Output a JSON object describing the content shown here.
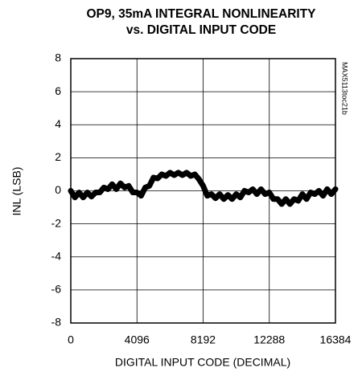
{
  "chart_data": {
    "type": "line",
    "title": "OP9, 35mA INTEGRAL NONLINEARITY",
    "subtitle": "vs. DIGITAL INPUT CODE",
    "xlabel": "DIGITAL INPUT CODE (DECIMAL)",
    "ylabel": "INL (LSB)",
    "annotation": "MAX5113toc21b",
    "x": [
      0,
      256,
      512,
      768,
      1024,
      1280,
      1536,
      1792,
      2048,
      2304,
      2560,
      2816,
      3072,
      3328,
      3584,
      3840,
      4096,
      4352,
      4608,
      4864,
      5120,
      5376,
      5632,
      5888,
      6144,
      6400,
      6656,
      6912,
      7168,
      7424,
      7680,
      7936,
      8192,
      8448,
      8704,
      8960,
      9216,
      9472,
      9728,
      9984,
      10240,
      10496,
      10752,
      11008,
      11264,
      11520,
      11776,
      12032,
      12288,
      12544,
      12800,
      13056,
      13312,
      13568,
      13824,
      14080,
      14336,
      14592,
      14848,
      15104,
      15360,
      15616,
      15872,
      16128,
      16384
    ],
    "series": [
      {
        "name": "INL",
        "color": "#000000",
        "values": [
          0,
          -0.4,
          -0.1,
          -0.4,
          -0.1,
          -0.35,
          -0.1,
          -0.1,
          0.2,
          0.1,
          0.4,
          0.1,
          0.45,
          0.2,
          0.3,
          -0.1,
          -0.1,
          -0.3,
          0.2,
          0.3,
          0.8,
          0.75,
          1.0,
          0.9,
          1.1,
          0.95,
          1.1,
          0.95,
          1.1,
          0.9,
          1.0,
          0.7,
          0.3,
          -0.3,
          -0.2,
          -0.45,
          -0.2,
          -0.5,
          -0.25,
          -0.5,
          -0.2,
          -0.4,
          0.0,
          -0.1,
          0.1,
          -0.2,
          0.1,
          -0.2,
          -0.1,
          -0.5,
          -0.5,
          -0.8,
          -0.5,
          -0.8,
          -0.5,
          -0.6,
          -0.2,
          -0.5,
          -0.1,
          -0.2,
          0.0,
          -0.3,
          0.1,
          -0.2,
          0.1
        ]
      }
    ],
    "xlim": [
      0,
      16384
    ],
    "xticks": [
      0,
      4096,
      8192,
      12288,
      16384
    ],
    "ylim": [
      -8,
      8
    ],
    "yticks": [
      -8,
      -6,
      -4,
      -2,
      0,
      2,
      4,
      6,
      8
    ],
    "grid": true
  }
}
